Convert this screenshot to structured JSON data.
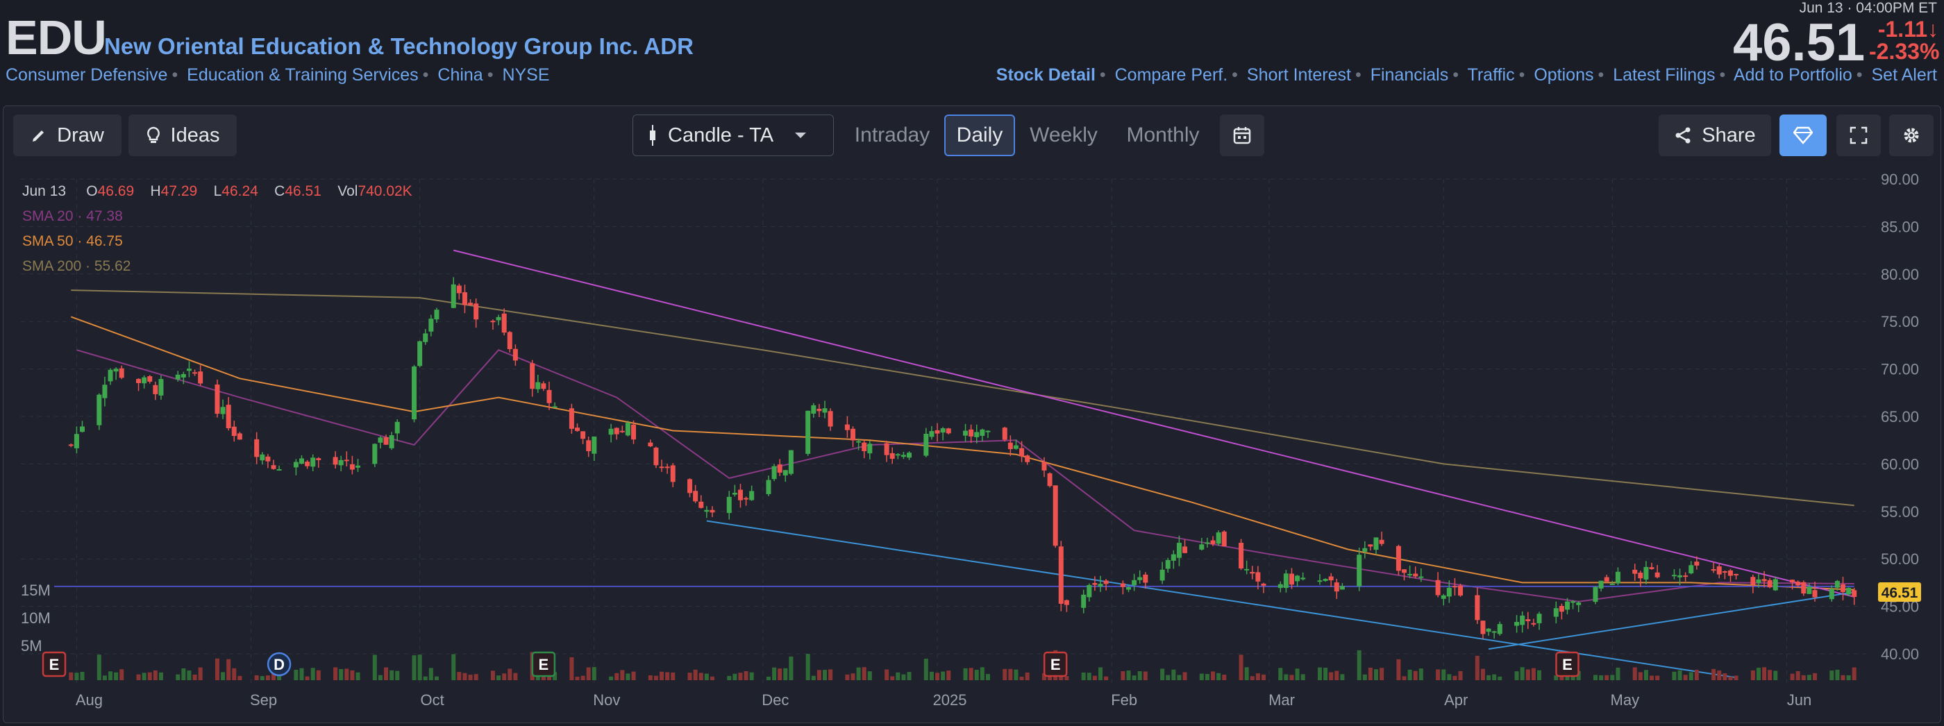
{
  "header": {
    "ticker": "EDU",
    "company": "New Oriental Education & Technology Group Inc. ADR",
    "tags": [
      "Consumer Defensive",
      "Education & Training Services",
      "China",
      "NYSE"
    ],
    "datetime": "Jun 13 · 04:00PM ET",
    "price": "46.51",
    "change": "-1.11",
    "change_pct": "-2.33%",
    "change_arrow": "↓",
    "links": [
      "Stock Detail",
      "Compare Perf.",
      "Short Interest",
      "Financials",
      "Traffic",
      "Options",
      "Latest Filings",
      "Add to Portfolio",
      "Set Alert"
    ]
  },
  "toolbar": {
    "draw": "Draw",
    "ideas": "Ideas",
    "chart_type": "Candle - TA",
    "tabs": [
      "Intraday",
      "Daily",
      "Weekly",
      "Monthly"
    ],
    "active_tab": "Daily",
    "share": "Share"
  },
  "legend": {
    "date": "Jun 13",
    "open_label": "O",
    "open": "46.69",
    "high_label": "H",
    "high": "47.29",
    "low_label": "L",
    "low": "46.24",
    "close_label": "C",
    "close": "46.51",
    "vol_label": "Vol",
    "vol": "740.02K",
    "sma20": "SMA 20 · 47.38",
    "sma50": "SMA 50 · 46.75",
    "sma200": "SMA 200 · 55.62"
  },
  "colors": {
    "up": "#3fa84e",
    "down": "#ef5350",
    "sma20": "#8a3a86",
    "sma50": "#e08a3c",
    "sma200": "#8a7a52",
    "trend_resist": "#c04fd0",
    "trend_support": "#3b93d8",
    "hline": "#4b4fc0",
    "accent": "#4c82e2",
    "price_tag": "#f2c230"
  },
  "chart_data": {
    "type": "candlestick",
    "ticker": "EDU",
    "y_axis": {
      "ticks": [
        "90.00",
        "85.00",
        "80.00",
        "75.00",
        "70.00",
        "65.00",
        "60.00",
        "55.00",
        "50.00",
        "45.00",
        "40.00"
      ],
      "range": [
        37.5,
        90.5
      ],
      "side": "right"
    },
    "volume_axis": {
      "ticks": [
        "15M",
        "10M",
        "5M"
      ]
    },
    "x_axis": {
      "ticks": [
        "Aug",
        "Sep",
        "Oct",
        "Nov",
        "Dec",
        "2025",
        "Feb",
        "Mar",
        "Apr",
        "May",
        "Jun"
      ]
    },
    "last_price": "46.51",
    "events": [
      {
        "label": "E",
        "x": "2024-07-28",
        "kind": "earnings"
      },
      {
        "label": "D",
        "x": "2024-09-06",
        "kind": "dividend"
      },
      {
        "label": "E",
        "x": "2024-10-23",
        "kind": "earnings"
      },
      {
        "label": "E",
        "x": "2025-01-22",
        "kind": "earnings"
      },
      {
        "label": "E",
        "x": "2025-04-23",
        "kind": "earnings"
      }
    ],
    "price_path": [
      [
        "2024-07-31",
        62.0
      ],
      [
        "2024-08-07",
        70.0
      ],
      [
        "2024-08-15",
        68.0
      ],
      [
        "2024-08-22",
        69.5
      ],
      [
        "2024-08-29",
        63.5
      ],
      [
        "2024-09-05",
        60.0
      ],
      [
        "2024-09-12",
        60.5
      ],
      [
        "2024-09-19",
        59.5
      ],
      [
        "2024-09-26",
        63.0
      ],
      [
        "2024-10-03",
        76.0
      ],
      [
        "2024-10-07",
        79.5
      ],
      [
        "2024-10-10",
        76.0
      ],
      [
        "2024-10-15",
        75.0
      ],
      [
        "2024-10-18",
        70.5
      ],
      [
        "2024-10-25",
        66.0
      ],
      [
        "2024-10-31",
        62.0
      ],
      [
        "2024-11-07",
        64.0
      ],
      [
        "2024-11-14",
        59.0
      ],
      [
        "2024-11-21",
        55.5
      ],
      [
        "2024-11-28",
        56.5
      ],
      [
        "2024-12-05",
        60.0
      ],
      [
        "2024-12-10",
        66.0
      ],
      [
        "2024-12-17",
        63.0
      ],
      [
        "2024-12-24",
        60.0
      ],
      [
        "2024-12-31",
        64.0
      ],
      [
        "2025-01-08",
        63.0
      ],
      [
        "2025-01-15",
        62.0
      ],
      [
        "2025-01-21",
        58.0
      ],
      [
        "2025-01-23",
        45.5
      ],
      [
        "2025-01-30",
        47.0
      ],
      [
        "2025-02-06",
        47.5
      ],
      [
        "2025-02-13",
        51.0
      ],
      [
        "2025-02-20",
        52.5
      ],
      [
        "2025-02-27",
        47.0
      ],
      [
        "2025-03-06",
        48.0
      ],
      [
        "2025-03-13",
        47.0
      ],
      [
        "2025-03-20",
        52.0
      ],
      [
        "2025-03-27",
        47.5
      ],
      [
        "2025-04-03",
        46.5
      ],
      [
        "2025-04-09",
        42.0
      ],
      [
        "2025-04-16",
        43.5
      ],
      [
        "2025-04-24",
        45.0
      ],
      [
        "2025-05-01",
        48.0
      ],
      [
        "2025-05-08",
        48.5
      ],
      [
        "2025-05-15",
        49.0
      ],
      [
        "2025-05-22",
        48.0
      ],
      [
        "2025-05-29",
        47.5
      ],
      [
        "2025-06-05",
        46.5
      ],
      [
        "2025-06-10",
        47.5
      ],
      [
        "2025-06-13",
        46.51
      ]
    ],
    "sma_path": {
      "SMA 20": [
        [
          "2024-08-01",
          72.0
        ],
        [
          "2024-08-30",
          67.0
        ],
        [
          "2024-09-30",
          62.0
        ],
        [
          "2024-10-15",
          72.0
        ],
        [
          "2024-11-05",
          67.0
        ],
        [
          "2024-11-25",
          58.5
        ],
        [
          "2024-12-20",
          62.0
        ],
        [
          "2025-01-15",
          62.5
        ],
        [
          "2025-02-05",
          53.0
        ],
        [
          "2025-03-01",
          50.5
        ],
        [
          "2025-04-01",
          47.5
        ],
        [
          "2025-04-25",
          45.5
        ],
        [
          "2025-05-20",
          47.5
        ],
        [
          "2025-06-13",
          47.38
        ]
      ],
      "SMA 50": [
        [
          "2024-07-31",
          75.5
        ],
        [
          "2024-08-30",
          69.0
        ],
        [
          "2024-09-30",
          65.5
        ],
        [
          "2024-10-15",
          67.0
        ],
        [
          "2024-11-15",
          63.5
        ],
        [
          "2024-12-20",
          62.5
        ],
        [
          "2025-01-15",
          61.0
        ],
        [
          "2025-02-15",
          56.0
        ],
        [
          "2025-03-15",
          51.0
        ],
        [
          "2025-04-15",
          47.5
        ],
        [
          "2025-05-15",
          47.5
        ],
        [
          "2025-06-13",
          46.75
        ]
      ],
      "SMA 200": [
        [
          "2024-07-31",
          78.3
        ],
        [
          "2024-10-01",
          77.5
        ],
        [
          "2024-12-01",
          72.0
        ],
        [
          "2025-02-01",
          66.0
        ],
        [
          "2025-04-01",
          60.0
        ],
        [
          "2025-06-13",
          55.62
        ]
      ]
    },
    "trendlines": [
      {
        "kind": "resistance",
        "from": [
          "2024-10-07",
          82.5
        ],
        "to": [
          "2025-06-13",
          46.0
        ]
      },
      {
        "kind": "support",
        "from": [
          "2024-11-21",
          54.0
        ],
        "to": [
          "2025-05-23",
          37.5
        ]
      },
      {
        "kind": "support",
        "from": [
          "2025-04-09",
          40.5
        ],
        "to": [
          "2025-06-13",
          46.5
        ]
      },
      {
        "kind": "horizontal",
        "from": [
          "2024-07-28",
          47.1
        ],
        "to": [
          "2025-06-13",
          47.1
        ]
      }
    ]
  }
}
